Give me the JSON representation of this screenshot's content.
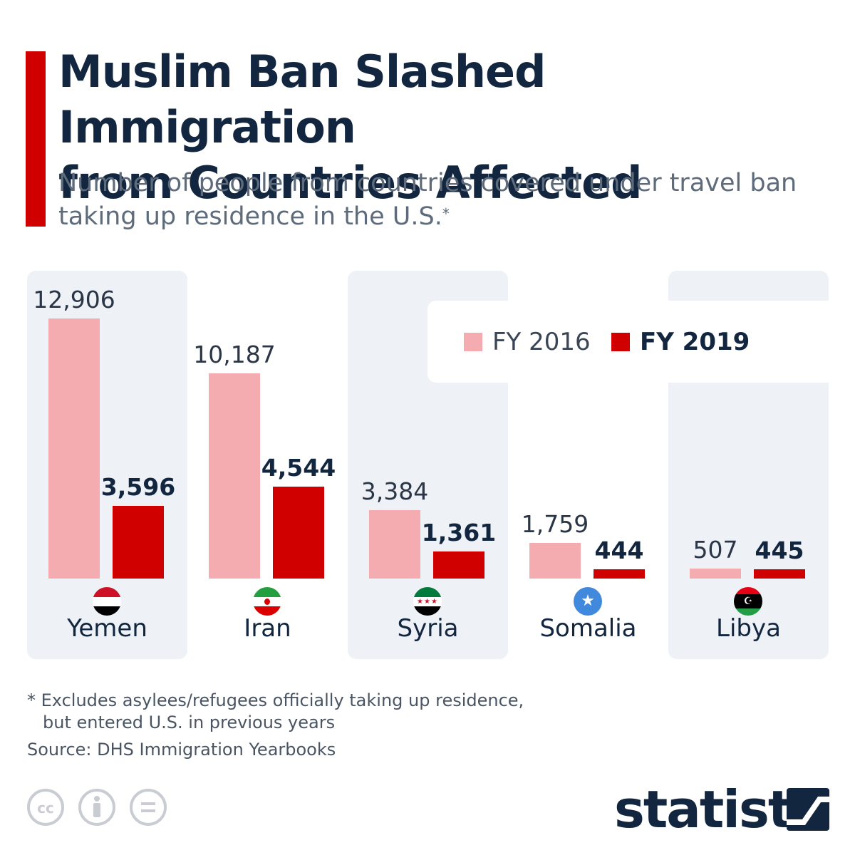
{
  "header": {
    "title_line1": "Muslim Ban Slashed Immigration",
    "title_line2": "from Countries Affected",
    "subtitle_line1": "Number of people from countries covered under travel ban",
    "subtitle_line2": "taking up residence in the U.S.",
    "subtitle_marker": "*"
  },
  "legend": {
    "fy2016": "FY 2016",
    "fy2019": "FY 2019"
  },
  "colors": {
    "fy2016": "#f4acb0",
    "fy2019": "#d00000",
    "accent": "#d00000",
    "panel": "#eef1f6"
  },
  "chart_data": {
    "type": "bar",
    "title": "Muslim Ban Slashed Immigration from Countries Affected",
    "categories": [
      "Yemen",
      "Iran",
      "Syria",
      "Somalia",
      "Libya"
    ],
    "series": [
      {
        "name": "FY 2016",
        "values": [
          12906,
          10187,
          3384,
          1759,
          507
        ]
      },
      {
        "name": "FY 2019",
        "values": [
          3596,
          4544,
          1361,
          444,
          445
        ]
      }
    ],
    "value_labels": {
      "FY 2016": [
        "12,906",
        "10,187",
        "3,384",
        "1,759",
        "507"
      ],
      "FY 2019": [
        "3,596",
        "4,544",
        "1,361",
        "444",
        "445"
      ]
    },
    "xlabel": "",
    "ylabel": "",
    "ylim": [
      0,
      12906
    ],
    "grid": false,
    "legend_position": "top-right"
  },
  "flags": [
    "yemen-flag-icon",
    "iran-flag-icon",
    "syria-flag-icon",
    "somalia-flag-icon",
    "libya-flag-icon"
  ],
  "footer": {
    "footnote_line1": "* Excludes asylees/refugees officially taking up residence,",
    "footnote_line2": "but entered U.S. in previous years",
    "source": "Source: DHS Immigration Yearbooks",
    "brand": "statista",
    "license_icons": [
      "cc-icon",
      "attribution-icon",
      "no-derivatives-icon"
    ]
  }
}
